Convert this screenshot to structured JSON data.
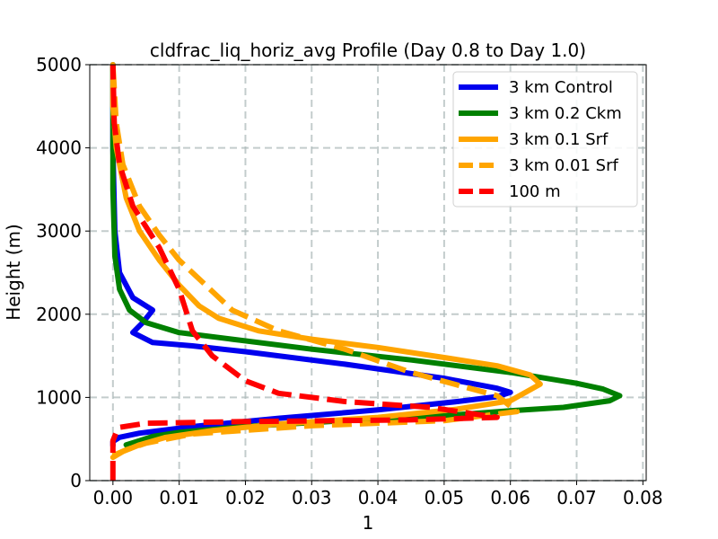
{
  "chart_data": {
    "type": "line",
    "title": "cldfrac_liq_horiz_avg Profile (Day 0.8 to Day 1.0)",
    "xlabel": "1",
    "ylabel": "Height (m)",
    "xlim": [
      -0.0035,
      0.0805
    ],
    "ylim": [
      0,
      5000
    ],
    "xticks": [
      0.0,
      0.01,
      0.02,
      0.03,
      0.04,
      0.05,
      0.06,
      0.07,
      0.08
    ],
    "xtick_labels": [
      "0.00",
      "0.01",
      "0.02",
      "0.03",
      "0.04",
      "0.05",
      "0.06",
      "0.07",
      "0.08"
    ],
    "yticks": [
      0,
      1000,
      2000,
      3000,
      4000,
      5000
    ],
    "ytick_labels": [
      "0",
      "1000",
      "2000",
      "3000",
      "4000",
      "5000"
    ],
    "grid": true,
    "legend_position": "top-right",
    "series": [
      {
        "name": "3 km Control",
        "color": "#0000ee",
        "style": "solid",
        "x": [
          0.0,
          0.0,
          0.001,
          0.004,
          0.012,
          0.025,
          0.04,
          0.052,
          0.058,
          0.06,
          0.058,
          0.05,
          0.035,
          0.02,
          0.012,
          0.006,
          0.003,
          0.0045,
          0.006,
          0.003,
          0.001,
          0.0003,
          0.0,
          0.0
        ],
        "y": [
          420,
          470,
          520,
          570,
          650,
          750,
          850,
          950,
          1010,
          1060,
          1110,
          1230,
          1400,
          1550,
          1620,
          1660,
          1780,
          1900,
          2050,
          2200,
          2500,
          3000,
          4000,
          5000
        ]
      },
      {
        "name": "3 km 0.2 Ckm",
        "color": "#008000",
        "style": "solid",
        "x": [
          0.002,
          0.004,
          0.006,
          0.01,
          0.02,
          0.035,
          0.05,
          0.06,
          0.068,
          0.075,
          0.0765,
          0.074,
          0.07,
          0.06,
          0.045,
          0.03,
          0.018,
          0.01,
          0.005,
          0.0025,
          0.001,
          0.0003,
          0.0,
          0.0
        ],
        "y": [
          430,
          480,
          530,
          580,
          650,
          720,
          780,
          840,
          880,
          960,
          1020,
          1100,
          1170,
          1300,
          1450,
          1580,
          1700,
          1780,
          1900,
          2050,
          2300,
          2700,
          3500,
          5000
        ]
      },
      {
        "name": "3 km 0.1 Srf",
        "color": "#ffa500",
        "style": "solid",
        "x": [
          0.0,
          0.0015,
          0.004,
          0.008,
          0.015,
          0.025,
          0.04,
          0.052,
          0.06,
          0.0645,
          0.063,
          0.058,
          0.05,
          0.04,
          0.03,
          0.022,
          0.016,
          0.013,
          0.01,
          0.007,
          0.004,
          0.002,
          0.0005,
          0.0,
          0.0
        ],
        "y": [
          280,
          350,
          430,
          520,
          600,
          680,
          760,
          860,
          960,
          1160,
          1270,
          1380,
          1480,
          1600,
          1700,
          1800,
          1950,
          2100,
          2350,
          2650,
          3000,
          3400,
          4000,
          4500,
          5000
        ]
      },
      {
        "name": "3 km 0.01 Srf",
        "color": "#ffa500",
        "style": "dashed",
        "x": [
          0.0,
          0.002,
          0.005,
          0.012,
          0.03,
          0.05,
          0.061,
          0.058,
          0.045,
          0.035,
          0.025,
          0.018,
          0.014,
          0.01,
          0.007,
          0.004,
          0.0015,
          0.0005,
          0.0
        ],
        "y": [
          300,
          370,
          450,
          560,
          660,
          720,
          830,
          1020,
          1300,
          1580,
          1800,
          2050,
          2350,
          2650,
          2950,
          3300,
          3800,
          4300,
          5000
        ]
      },
      {
        "name": "100 m",
        "color": "#ff0000",
        "style": "dashed",
        "x": [
          0.0,
          0.0,
          0.0005,
          0.001,
          0.005,
          0.02,
          0.045,
          0.058,
          0.048,
          0.035,
          0.025,
          0.02,
          0.015,
          0.012,
          0.01,
          0.007,
          0.003,
          0.001,
          0.0002,
          0.0
        ],
        "y": [
          0,
          480,
          580,
          640,
          690,
          710,
          730,
          760,
          880,
          950,
          1050,
          1200,
          1500,
          1800,
          2300,
          2800,
          3300,
          3800,
          4300,
          5000
        ]
      }
    ]
  }
}
